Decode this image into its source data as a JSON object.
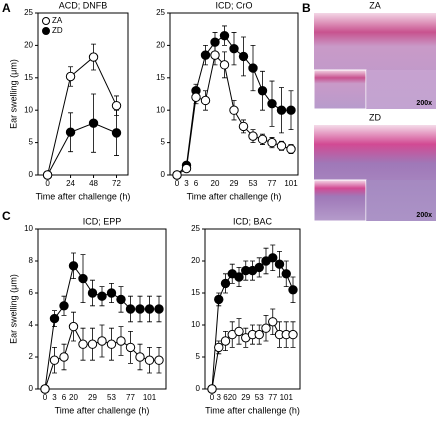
{
  "panels": {
    "a": "A",
    "b": "B",
    "c": "C"
  },
  "histology": {
    "top": {
      "label": "ZA",
      "magnification": "200x"
    },
    "bottom": {
      "label": "ZD",
      "magnification": "200x"
    }
  },
  "chart_data": [
    {
      "type": "line",
      "title": "ACD; DNFB",
      "ylabel": "Ear swelling (μm)",
      "xlabel": "Time after challenge (h)",
      "x": [
        0,
        24,
        48,
        72
      ],
      "xlim": [
        -10,
        84
      ],
      "xticks": [
        0,
        24,
        48,
        72
      ],
      "ylim": [
        0,
        25
      ],
      "yticks": [
        0,
        5,
        10,
        15,
        20,
        25
      ],
      "legend": "upper left",
      "series": [
        {
          "name": "ZA",
          "color": "#000000",
          "marker_fill": "#ffffff",
          "values": [
            0,
            15.2,
            18.2,
            10.7
          ],
          "errors": [
            0,
            1.5,
            2,
            1.5
          ]
        },
        {
          "name": "ZD",
          "color": "#000000",
          "marker_fill": "#000000",
          "values": [
            0,
            6.6,
            8,
            6.5
          ],
          "errors": [
            0,
            3,
            4.5,
            3.5
          ]
        }
      ]
    },
    {
      "type": "line",
      "title": "ICD; CrO",
      "xlabel": "Time after challenge (h)",
      "categories": [
        "0",
        "3",
        "6",
        null,
        "20",
        null,
        "29",
        null,
        "53",
        null,
        "77",
        null,
        "101"
      ],
      "ylim": [
        0,
        25
      ],
      "yticks": [
        0,
        5,
        10,
        15,
        20,
        25
      ],
      "series": [
        {
          "color": "#000000",
          "marker_fill": "#ffffff",
          "values": [
            0,
            1,
            12,
            11.5,
            18.5,
            17,
            10,
            7.5,
            6,
            5.5,
            5,
            4.5,
            4
          ],
          "errors": [
            0,
            0.3,
            1,
            1.5,
            1.5,
            2,
            1.5,
            1,
            1,
            0.8,
            0.8,
            0.7,
            0.7
          ]
        },
        {
          "color": "#000000",
          "marker_fill": "#000000",
          "values": [
            0,
            1.5,
            13,
            18.5,
            20.5,
            21.5,
            19.5,
            18.3,
            16.5,
            13,
            11,
            10,
            10
          ],
          "errors": [
            0,
            0.5,
            1,
            1.5,
            1.5,
            1.5,
            2.5,
            3,
            3.5,
            3,
            3.5,
            3.5,
            3
          ]
        }
      ]
    },
    {
      "type": "line",
      "title": "ICD; EPP",
      "ylabel": "Ear swelling (μm)",
      "xlabel": "Time after challenge (h)",
      "categories": [
        "0",
        "3",
        "6",
        "20",
        null,
        "29",
        null,
        "53",
        null,
        "77",
        null,
        "101",
        null
      ],
      "ylim": [
        0,
        10
      ],
      "yticks": [
        0,
        2,
        4,
        6,
        8,
        10
      ],
      "series": [
        {
          "color": "#000000",
          "marker_fill": "#ffffff",
          "values": [
            0,
            1.8,
            2,
            3.9,
            2.8,
            2.8,
            3,
            2.8,
            3,
            2.6,
            2,
            1.8,
            1.8
          ],
          "errors": [
            0,
            0.8,
            0.8,
            0.9,
            1,
            1,
            1,
            1,
            0.9,
            1,
            0.8,
            0.8,
            0.8
          ]
        },
        {
          "color": "#000000",
          "marker_fill": "#000000",
          "values": [
            0,
            4.4,
            5.2,
            7.7,
            6.9,
            6,
            5.8,
            6,
            5.6,
            5,
            5,
            5,
            5
          ],
          "errors": [
            0,
            0.5,
            0.6,
            0.8,
            1.5,
            0.8,
            0.6,
            0.6,
            0.8,
            0.8,
            0.8,
            0.8,
            0.8
          ]
        }
      ]
    },
    {
      "type": "line",
      "title": "ICD; BAC",
      "xlabel": "Time after challenge (h)",
      "categories": [
        "0",
        "3",
        "6",
        "20",
        null,
        "29",
        null,
        "53",
        null,
        "77",
        null,
        "101",
        null
      ],
      "ylim": [
        0,
        25
      ],
      "yticks": [
        0,
        5,
        10,
        15,
        20,
        25
      ],
      "series": [
        {
          "color": "#000000",
          "marker_fill": "#ffffff",
          "values": [
            0,
            6.5,
            7.5,
            8.5,
            9,
            8,
            8.5,
            8.5,
            9.5,
            10.5,
            8.5,
            8.5,
            8.5
          ],
          "errors": [
            0,
            1,
            1.5,
            2,
            2,
            1.5,
            1.5,
            1.5,
            2,
            2,
            2,
            2,
            2
          ]
        },
        {
          "color": "#000000",
          "marker_fill": "#000000",
          "values": [
            0,
            14,
            16.5,
            18,
            17.5,
            18.5,
            18.5,
            19,
            20,
            20.5,
            19.5,
            18,
            15.5
          ],
          "errors": [
            0,
            1,
            1.5,
            1.5,
            1.5,
            1.5,
            1.5,
            1.5,
            2,
            2,
            2,
            2,
            2
          ]
        }
      ]
    }
  ]
}
